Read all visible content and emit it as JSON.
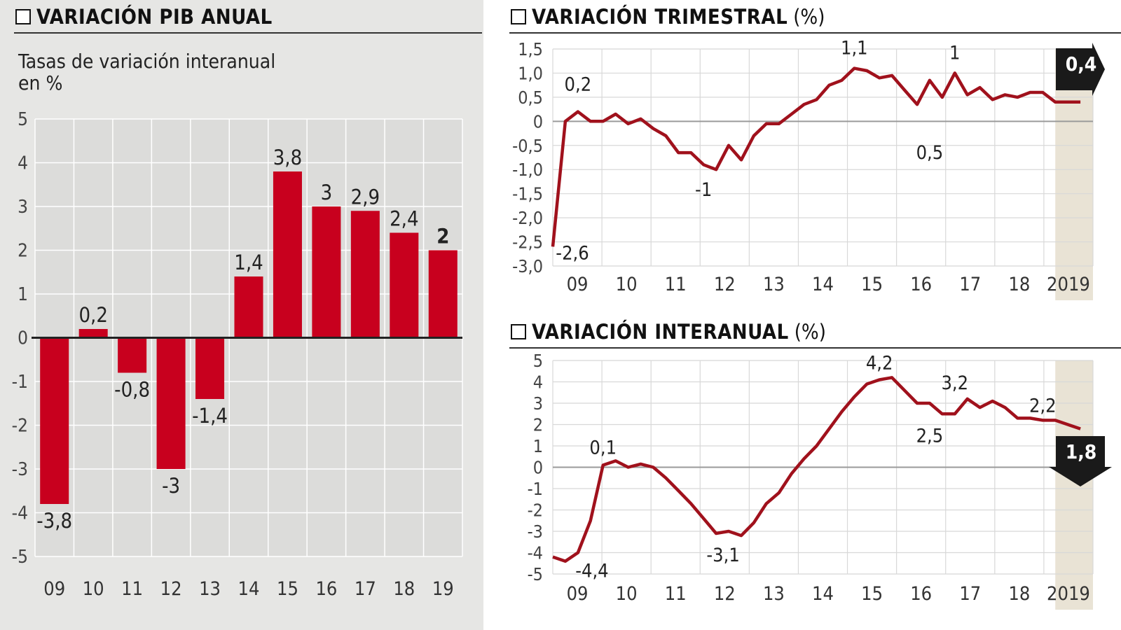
{
  "colors": {
    "bar": "#c8001e",
    "line": "#a0111c",
    "shade": "#e9e3d5",
    "axis": "#222222",
    "grid": "#ffffff",
    "badge": "#1a1a1a"
  },
  "left": {
    "title": "VARIACIÓN PIB ANUAL",
    "subtitle": "Tasas de variación interanual\nen %"
  },
  "right_top": {
    "title_bold": "VARIACIÓN TRIMESTRAL",
    "title_unit": "(%)"
  },
  "right_bottom": {
    "title_bold": "VARIACIÓN INTERANUAL",
    "title_unit": "(%)"
  },
  "chart_data": [
    {
      "type": "bar",
      "categories": [
        "09",
        "10",
        "11",
        "12",
        "13",
        "14",
        "15",
        "16",
        "17",
        "18",
        "19"
      ],
      "values": [
        -3.8,
        0.2,
        -0.8,
        -3,
        -1.4,
        1.4,
        3.8,
        3,
        2.9,
        2.4,
        2
      ],
      "labels": [
        "-3,8",
        "0,2",
        "-0,8",
        "-3",
        "-1,4",
        "1,4",
        "3,8",
        "3",
        "2,9",
        "2,4",
        "2"
      ],
      "ylim": [
        -5,
        5
      ],
      "yticks": [
        "5",
        "4",
        "3",
        "2",
        "1",
        "0",
        "-1",
        "-2",
        "-3",
        "-4",
        "-5"
      ],
      "grid": true
    },
    {
      "type": "line",
      "x_ticks": [
        "09",
        "10",
        "11",
        "12",
        "13",
        "14",
        "15",
        "16",
        "17",
        "18",
        "2019"
      ],
      "x_start": 2009,
      "x_end": 2019.75,
      "period": "quarterly",
      "values": [
        -2.6,
        0.0,
        0.2,
        0.0,
        0.0,
        0.15,
        -0.05,
        0.05,
        -0.15,
        -0.3,
        -0.65,
        -0.65,
        -0.9,
        -1.0,
        -0.5,
        -0.8,
        -0.3,
        -0.05,
        -0.05,
        0.15,
        0.35,
        0.45,
        0.75,
        0.85,
        1.1,
        1.05,
        0.9,
        0.95,
        0.65,
        0.35,
        0.85,
        0.5,
        1.0,
        0.55,
        0.7,
        0.45,
        0.55,
        0.5,
        0.6,
        0.6,
        0.4,
        0.4,
        0.4
      ],
      "annotations": [
        {
          "label": "-2,6",
          "x": 2009.0,
          "y": -2.6
        },
        {
          "label": "0,2",
          "x": 2009.5,
          "y": 0.2
        },
        {
          "label": "-1",
          "x": 2012.0,
          "y": -1.0
        },
        {
          "label": "1,1",
          "x": 2015.0,
          "y": 1.1
        },
        {
          "label": "0,5",
          "x": 2016.5,
          "y": 0.5
        },
        {
          "label": "1",
          "x": 2017.0,
          "y": 1.0
        }
      ],
      "badge": "0,4",
      "ylim": [
        -3,
        1.5
      ],
      "yticks": [
        "1,5",
        "1,0",
        "0,5",
        "0",
        "-0,5",
        "-1,0",
        "-1,5",
        "-2,0",
        "-2,5",
        "-3,0"
      ],
      "highlight_from": 2019.0,
      "grid": true
    },
    {
      "type": "line",
      "x_ticks": [
        "09",
        "10",
        "11",
        "12",
        "13",
        "14",
        "15",
        "16",
        "17",
        "18",
        "2019"
      ],
      "x_start": 2009,
      "x_end": 2019.75,
      "period": "quarterly",
      "values": [
        -4.2,
        -4.4,
        -4.0,
        -2.5,
        0.1,
        0.3,
        0.0,
        0.15,
        0.0,
        -0.5,
        -1.1,
        -1.7,
        -2.4,
        -3.1,
        -3.0,
        -3.2,
        -2.6,
        -1.7,
        -1.2,
        -0.3,
        0.4,
        1.0,
        1.8,
        2.6,
        3.3,
        3.9,
        4.1,
        4.2,
        3.6,
        3.0,
        3.0,
        2.5,
        2.5,
        3.2,
        2.8,
        3.1,
        2.8,
        2.3,
        2.3,
        2.2,
        2.2,
        2.0,
        1.8
      ],
      "annotations": [
        {
          "label": "-4,4",
          "x": 2009.25,
          "y": -4.4
        },
        {
          "label": "0,1",
          "x": 2010.0,
          "y": 0.1
        },
        {
          "label": "-3,1",
          "x": 2012.25,
          "y": -3.1
        },
        {
          "label": "4,2",
          "x": 2015.5,
          "y": 4.2
        },
        {
          "label": "2,5",
          "x": 2016.5,
          "y": 2.5
        },
        {
          "label": "3,2",
          "x": 2017.0,
          "y": 3.2
        },
        {
          "label": "2,2",
          "x": 2018.75,
          "y": 2.2
        }
      ],
      "badge": "1,8",
      "ylim": [
        -5,
        5
      ],
      "yticks": [
        "5",
        "4",
        "3",
        "2",
        "1",
        "0",
        "-1",
        "-2",
        "-3",
        "-4",
        "-5"
      ],
      "highlight_from": 2019.0,
      "grid": true
    }
  ]
}
